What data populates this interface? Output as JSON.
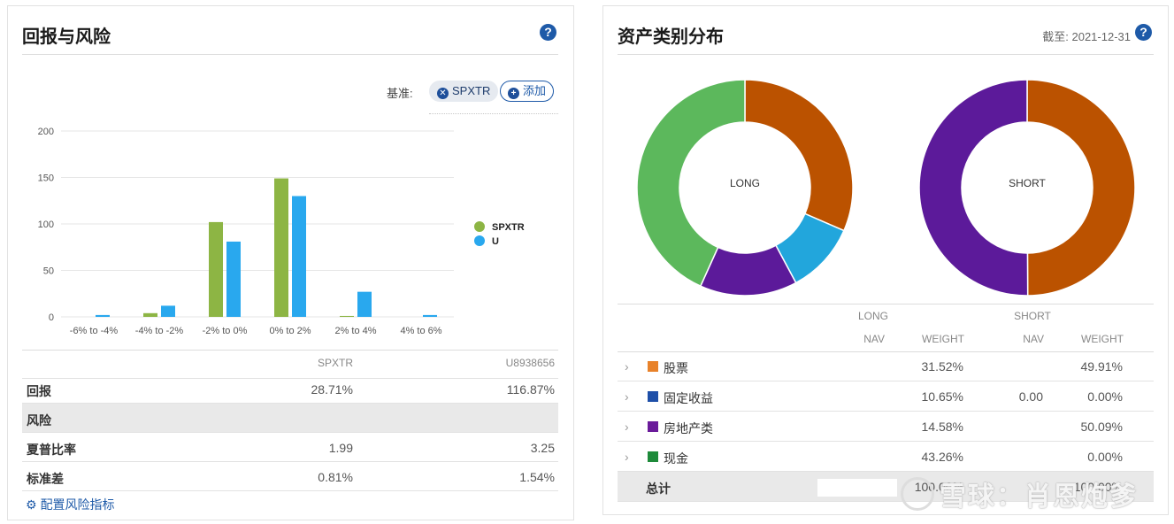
{
  "left": {
    "title": "回报与风险",
    "help": "?",
    "benchmark_label": "基准:",
    "benchmark_chip": "SPXTR",
    "add_button": "添加",
    "table": {
      "col1": "SPXTR",
      "col2": "U8938656",
      "rows": {
        "return": {
          "label": "回报",
          "v1": "28.71%",
          "v2": "116.87%"
        },
        "risk": {
          "label": "风险"
        },
        "sharpe": {
          "label": "夏普比率",
          "v1": "1.99",
          "v2": "3.25"
        },
        "std": {
          "label": "标准差",
          "v1": "0.81%",
          "v2": "1.54%"
        }
      }
    },
    "config_link": "配置风险指标"
  },
  "chart_data": {
    "type": "bar",
    "categories": [
      "-6% to -4%",
      "-4% to -2%",
      "-2% to 0%",
      "0% to 2%",
      "2% to 4%",
      "4% to 6%"
    ],
    "series": [
      {
        "name": "SPXTR",
        "color": "#8db544",
        "values": [
          0,
          4,
          102,
          149,
          1,
          0
        ]
      },
      {
        "name": "U",
        "color": "#29a8ee",
        "values": [
          2,
          12,
          81,
          130,
          27,
          2
        ]
      }
    ],
    "ylim": [
      0,
      200
    ],
    "yticks": [
      "0",
      "50",
      "100",
      "150",
      "200"
    ],
    "legend": "right",
    "grid": true
  },
  "right": {
    "title": "资产类别分布",
    "asof": "截至: 2021-12-31",
    "help": "?",
    "long_label": "LONG",
    "short_label": "SHORT",
    "long_donut": [
      {
        "name": "股票",
        "value": 31.52,
        "color": "#bb5200"
      },
      {
        "name": "固定收益",
        "value": 10.65,
        "color": "#22a6dc"
      },
      {
        "name": "房地产类",
        "value": 14.58,
        "color": "#5c1a9a"
      },
      {
        "name": "现金",
        "value": 43.26,
        "color": "#5cb85c"
      }
    ],
    "short_donut": [
      {
        "name": "股票",
        "value": 49.91,
        "color": "#bb5200"
      },
      {
        "name": "房地产类",
        "value": 50.09,
        "color": "#5c1a9a"
      }
    ],
    "head": {
      "long": "LONG",
      "short": "SHORT",
      "nav": "NAV",
      "weight": "WEIGHT"
    },
    "rows": [
      {
        "name": "股票",
        "color": "#e8822a",
        "long_nav": "",
        "long_w": "31.52%",
        "short_nav": "",
        "short_w": "49.91%"
      },
      {
        "name": "固定收益",
        "color": "#1e4fa8",
        "long_nav": "",
        "long_w": "10.65%",
        "short_nav": "0.00",
        "short_w": "0.00%"
      },
      {
        "name": "房地产类",
        "color": "#6a1b9a",
        "long_nav": "",
        "long_w": "14.58%",
        "short_nav": "",
        "short_w": "50.09%"
      },
      {
        "name": "现金",
        "color": "#1e8a3a",
        "long_nav": "",
        "long_w": "43.26%",
        "short_nav": "",
        "short_w": "0.00%"
      }
    ],
    "total": {
      "label": "总计",
      "long_w": "100.00%",
      "short_w": "100.00%"
    },
    "watermark": "雪球：肖恩炮爹"
  }
}
